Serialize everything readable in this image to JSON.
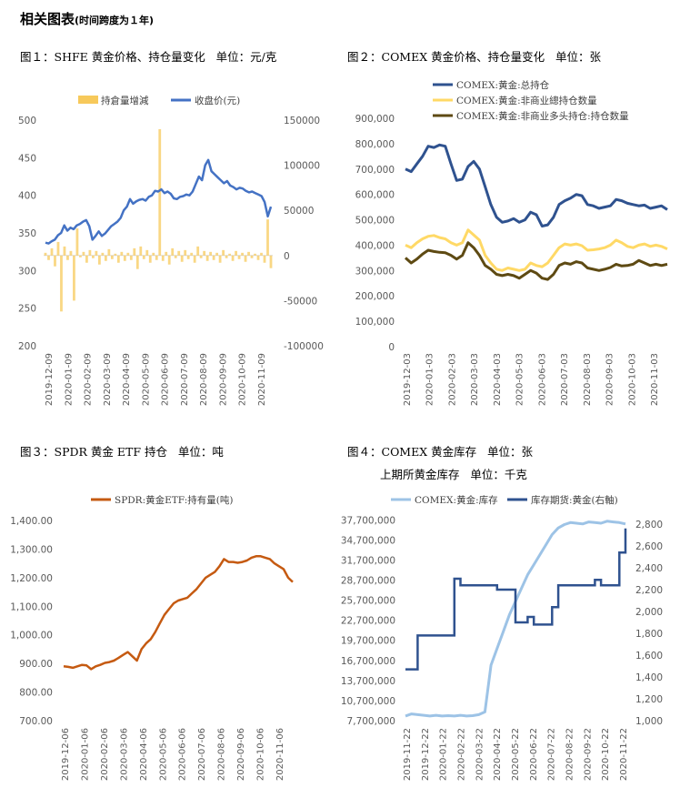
{
  "heading": {
    "main": "相关图表",
    "sub": "(时间跨度为１年)"
  },
  "colors": {
    "dark_blue": "#2f528f",
    "blue": "#4472c4",
    "light_blue": "#9dc3e6",
    "yellow": "#ffd966",
    "gold": "#f7c95b",
    "olive": "#5e4a13",
    "orange": "#c55a11",
    "axis_text": "#595959"
  },
  "figures": {
    "fig1": {
      "title": "图１：SHFE 黄金价格、持仓量变化   单位：元/克"
    },
    "fig2": {
      "title": "图２：COMEX 黄金价格、持仓量变化   单位：张"
    },
    "fig3": {
      "title": "图３：SPDR 黄金 ETF 持仓   单位：吨"
    },
    "fig4": {
      "title": "图４：COMEX 黄金库存   单位：张",
      "title2": "上期所黄金库存   单位：千克"
    }
  },
  "chart_data": [
    {
      "id": "fig1",
      "type": "bar+line",
      "legend_position": "top",
      "legend": [
        "持倉量增減",
        "收盘价(元)"
      ],
      "x_ticks": [
        "2019-12-09",
        "2020-01-09",
        "2020-02-09",
        "2020-03-09",
        "2020-04-09",
        "2020-05-09",
        "2020-06-09",
        "2020-07-09",
        "2020-08-09",
        "2020-09-09",
        "2020-10-09",
        "2020-11-09"
      ],
      "y_left": {
        "ticks": [
          "500",
          "450",
          "400",
          "350",
          "300",
          "250",
          "200"
        ],
        "range": [
          200,
          500
        ]
      },
      "y_right": {
        "ticks": [
          "150000",
          "100000",
          "50000",
          "0",
          "-50000",
          "-100000"
        ],
        "range": [
          -100000,
          150000
        ]
      },
      "series": [
        {
          "name": "持倉量增減",
          "axis": "right",
          "kind": "bar",
          "values": [
            3000,
            -5000,
            8000,
            -12000,
            15000,
            -62000,
            10000,
            -5000,
            5000,
            -50000,
            30000,
            -2000,
            4000,
            -8000,
            6000,
            -3000,
            5000,
            -10000,
            3000,
            -6000,
            7000,
            -4000,
            2000,
            -8000,
            4000,
            -6000,
            3000,
            -5000,
            8000,
            -15000,
            10000,
            -4000,
            6000,
            -8000,
            3000,
            -5000,
            140000,
            -6000,
            4000,
            -10000,
            8000,
            -3000,
            5000,
            -7000,
            6000,
            -4000,
            3000,
            -8000,
            10000,
            -3000,
            5000,
            -6000,
            4000,
            -5000,
            3000,
            -8000,
            6000,
            -3000,
            2000,
            -6000,
            5000,
            -4000,
            3000,
            -7000,
            4000,
            -3000,
            2000,
            -5000,
            3000,
            -8000,
            40000,
            -14000
          ]
        },
        {
          "name": "收盘价(元)",
          "axis": "left",
          "kind": "line",
          "values": [
            337,
            336,
            339,
            341,
            347,
            350,
            360,
            353,
            357,
            355,
            360,
            362,
            365,
            367,
            359,
            341,
            346,
            352,
            346,
            349,
            354,
            359,
            362,
            365,
            370,
            380,
            385,
            395,
            389,
            392,
            394,
            395,
            393,
            398,
            400,
            406,
            405,
            408,
            403,
            405,
            402,
            396,
            395,
            398,
            399,
            401,
            400,
            405,
            415,
            425,
            420,
            440,
            447,
            432,
            428,
            424,
            420,
            416,
            419,
            413,
            411,
            408,
            410,
            409,
            406,
            404,
            405,
            403,
            401,
            399,
            391,
            372,
            385
          ]
        }
      ]
    },
    {
      "id": "fig2",
      "type": "line",
      "legend_position": "top-left",
      "x_ticks": [
        "2019-12-03",
        "2020-01-03",
        "2020-02-03",
        "2020-03-03",
        "2020-04-03",
        "2020-05-03",
        "2020-06-03",
        "2020-07-03",
        "2020-08-03",
        "2020-09-03",
        "2020-10-03",
        "2020-11-03"
      ],
      "y": {
        "ticks": [
          "900,000",
          "800,000",
          "700,000",
          "600,000",
          "500,000",
          "400,000",
          "300,000",
          "200,000",
          "100,000",
          "0"
        ],
        "range": [
          0,
          900000
        ]
      },
      "series": [
        {
          "name": "COMEX:黄金:总持仓",
          "color": "dark_blue",
          "values": [
            700000,
            690000,
            720000,
            750000,
            790000,
            785000,
            795000,
            790000,
            720000,
            655000,
            660000,
            710000,
            730000,
            700000,
            630000,
            560000,
            510000,
            490000,
            495000,
            505000,
            490000,
            500000,
            530000,
            520000,
            475000,
            480000,
            510000,
            560000,
            575000,
            585000,
            600000,
            595000,
            560000,
            555000,
            545000,
            550000,
            555000,
            580000,
            575000,
            565000,
            560000,
            555000,
            558000,
            545000,
            550000,
            555000,
            540000
          ]
        },
        {
          "name": "COMEX:黄金:非商业總持仓数量",
          "color": "yellow",
          "values": [
            400000,
            390000,
            410000,
            425000,
            435000,
            438000,
            430000,
            425000,
            410000,
            400000,
            410000,
            460000,
            440000,
            420000,
            360000,
            330000,
            305000,
            300000,
            310000,
            305000,
            300000,
            305000,
            330000,
            320000,
            315000,
            330000,
            360000,
            390000,
            405000,
            400000,
            405000,
            398000,
            380000,
            382000,
            385000,
            390000,
            400000,
            420000,
            410000,
            395000,
            390000,
            400000,
            405000,
            395000,
            400000,
            395000,
            385000
          ]
        },
        {
          "name": "COMEX:黄金:非商业多头持仓:持仓数量",
          "color": "olive",
          "values": [
            350000,
            330000,
            345000,
            365000,
            380000,
            375000,
            372000,
            370000,
            360000,
            345000,
            360000,
            410000,
            390000,
            360000,
            320000,
            305000,
            285000,
            280000,
            285000,
            280000,
            270000,
            285000,
            300000,
            290000,
            270000,
            265000,
            285000,
            320000,
            330000,
            325000,
            335000,
            330000,
            310000,
            305000,
            300000,
            305000,
            312000,
            325000,
            318000,
            320000,
            325000,
            340000,
            330000,
            320000,
            325000,
            320000,
            325000
          ]
        }
      ]
    },
    {
      "id": "fig3",
      "type": "line",
      "legend_position": "top",
      "x_ticks": [
        "2019-12-06",
        "2020-01-06",
        "2020-02-06",
        "2020-03-06",
        "2020-04-06",
        "2020-05-06",
        "2020-06-06",
        "2020-07-06",
        "2020-08-06",
        "2020-09-06",
        "2020-10-06",
        "2020-11-06"
      ],
      "y": {
        "ticks": [
          "1,400.00",
          "1,300.00",
          "1,200.00",
          "1,100.00",
          "1,000.00",
          "900.00",
          "800.00",
          "700.00"
        ],
        "range": [
          700,
          1400
        ]
      },
      "series": [
        {
          "name": "SPDR:黄金ETF:持有量(吨)",
          "color": "orange",
          "values": [
            890,
            888,
            885,
            890,
            895,
            893,
            880,
            890,
            895,
            902,
            905,
            910,
            920,
            930,
            940,
            925,
            910,
            950,
            970,
            985,
            1010,
            1040,
            1070,
            1090,
            1110,
            1120,
            1125,
            1130,
            1145,
            1160,
            1180,
            1200,
            1210,
            1220,
            1240,
            1265,
            1255,
            1255,
            1252,
            1255,
            1260,
            1270,
            1275,
            1275,
            1270,
            1265,
            1250,
            1240,
            1230,
            1200,
            1185
          ]
        }
      ]
    },
    {
      "id": "fig4",
      "type": "line",
      "legend_position": "top",
      "x_ticks": [
        "2019-11-22",
        "2019-12-22",
        "2020-01-22",
        "2020-02-22",
        "2020-03-22",
        "2020-04-22",
        "2020-05-22",
        "2020-06-22",
        "2020-07-22",
        "2020-08-22",
        "2020-09-22",
        "2020-10-22",
        "2020-11-22"
      ],
      "y_left": {
        "ticks": [
          "37,700,000",
          "34,700,000",
          "31,700,000",
          "28,700,000",
          "25,700,000",
          "22,700,000",
          "19,700,000",
          "16,700,000",
          "13,700,000",
          "10,700,000",
          "7,700,000"
        ],
        "range": [
          7700000,
          38700000
        ]
      },
      "y_right": {
        "ticks": [
          "2,800",
          "2,600",
          "2,400",
          "2,200",
          "2,000",
          "1,800",
          "1,600",
          "1,400",
          "1,200",
          "1,000"
        ],
        "range": [
          1000,
          2900
        ]
      },
      "series": [
        {
          "name": "COMEX:黄金:库存",
          "axis": "left",
          "color": "light_blue",
          "values": [
            8400000,
            8700000,
            8600000,
            8500000,
            8400000,
            8500000,
            8400000,
            8450000,
            8400000,
            8500000,
            8400000,
            8450000,
            8600000,
            9000000,
            16000000,
            18500000,
            21000000,
            23500000,
            25500000,
            27500000,
            29500000,
            31000000,
            32500000,
            34000000,
            35500000,
            36500000,
            37000000,
            37300000,
            37200000,
            37100000,
            37400000,
            37300000,
            37200000,
            37500000,
            37400000,
            37300000,
            37100000
          ]
        },
        {
          "name": "库存期货:黄金(右軸)",
          "axis": "right",
          "color": "dark_blue",
          "values": [
            1470,
            1470,
            1780,
            1780,
            1780,
            1780,
            1780,
            1780,
            2300,
            2240,
            2240,
            2240,
            2240,
            2240,
            2240,
            2200,
            2200,
            2200,
            1900,
            1900,
            1950,
            1880,
            1880,
            1880,
            2040,
            2240,
            2240,
            2240,
            2240,
            2240,
            2240,
            2290,
            2240,
            2240,
            2240,
            2540,
            2760
          ]
        }
      ]
    }
  ]
}
